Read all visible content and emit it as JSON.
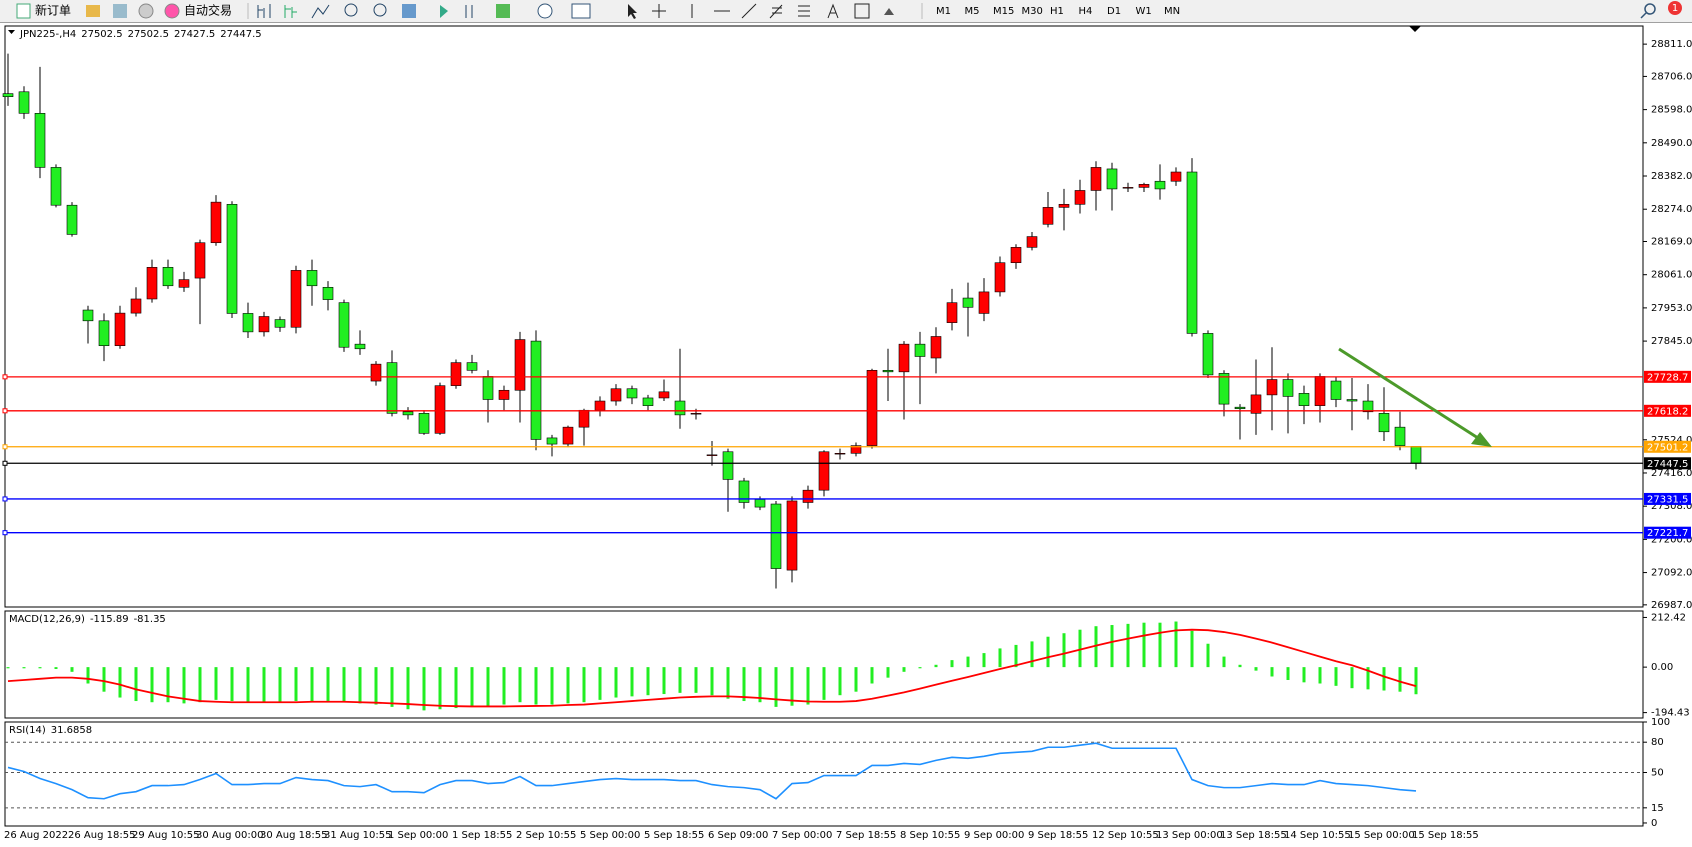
{
  "toolbar": {
    "new_order": "新订单",
    "auto_trading": "自动交易",
    "timeframes": [
      "M1",
      "M5",
      "M15",
      "M30",
      "H1",
      "H4",
      "D1",
      "W1",
      "MN"
    ],
    "alerts": "1"
  },
  "chart_data": [
    {
      "type": "candlestick",
      "title": "JPN225-,H4",
      "categories": [
        "26 Aug 2022",
        null,
        null,
        null,
        "26 Aug 18:55",
        null,
        null,
        null,
        "29 Aug 10:55",
        null,
        null,
        null,
        "30 Aug 00:00",
        null,
        null,
        null,
        "30 Aug 18:55",
        null,
        null,
        null,
        "31 Aug 10:55",
        null,
        null,
        null,
        "1 Sep 00:00",
        null,
        null,
        null,
        "1 Sep 18:55",
        null,
        null,
        null,
        "2 Sep 10:55",
        null,
        null,
        null,
        "5 Sep 00:00",
        null,
        null,
        null,
        "5 Sep 18:55",
        null,
        null,
        null,
        "6 Sep 09:00",
        null,
        null,
        null,
        "7 Sep 00:00",
        null,
        null,
        null,
        "7 Sep 18:55",
        null,
        null,
        null,
        "8 Sep 10:55",
        null,
        null,
        null,
        "9 Sep 00:00",
        null,
        null,
        null,
        "9 Sep 18:55",
        null,
        null,
        null,
        "12 Sep 10:55",
        null,
        null,
        null,
        "13 Sep 00:00",
        null,
        null,
        null,
        "13 Sep 18:55",
        null,
        null,
        null,
        "14 Sep 10:55",
        null,
        null,
        null,
        "15 Sep 00:00",
        null,
        null,
        null,
        "15 Sep 18:55"
      ],
      "open": [
        28650,
        28656,
        28586,
        28410,
        28287,
        27946,
        27911,
        27830,
        27936,
        27982,
        28085,
        28020,
        28050,
        28165,
        28290,
        27935,
        27875,
        27915,
        27890,
        28075,
        28020,
        27970,
        27835,
        27715,
        27775,
        27615,
        27610,
        27545,
        27700,
        27775,
        27730,
        27655,
        27685,
        27845,
        27530,
        27510,
        27565,
        27620,
        27650,
        27690,
        27660,
        27660,
        27650,
        27610,
        27475,
        27485,
        27390,
        27330,
        27315,
        27100,
        27320,
        27360,
        27480,
        27480,
        27505,
        27750,
        27745,
        27835,
        27790,
        27905,
        27985,
        27935,
        28005,
        28100,
        28150,
        28225,
        28280,
        28290,
        28335,
        28405,
        28345,
        28345,
        28365,
        28365,
        28395,
        27870,
        27740,
        27630,
        27610,
        27670,
        27720,
        27675,
        27635,
        27715,
        27655,
        27650,
        27610,
        27565,
        27502.5
      ],
      "high": [
        28780,
        28674,
        28737,
        28420,
        28297,
        27960,
        27935,
        27960,
        28020,
        28110,
        28110,
        28070,
        28175,
        28320,
        28300,
        27970,
        27940,
        27925,
        28090,
        28110,
        28040,
        27980,
        27880,
        27780,
        27815,
        27630,
        27620,
        27710,
        27785,
        27800,
        27750,
        27700,
        27875,
        27880,
        27540,
        27570,
        27625,
        27665,
        27705,
        27700,
        27670,
        27720,
        27820,
        27625,
        27520,
        27495,
        27400,
        27340,
        27325,
        27340,
        27375,
        27490,
        27495,
        27515,
        27755,
        27820,
        27845,
        27875,
        27890,
        28015,
        28035,
        28050,
        28120,
        28160,
        28200,
        28330,
        28340,
        28370,
        28430,
        28425,
        28360,
        28360,
        28420,
        28410,
        28440,
        27880,
        27750,
        27640,
        27785,
        27825,
        27740,
        27700,
        27740,
        27730,
        27725,
        27705,
        27695,
        27615,
        27502.5
      ],
      "low": [
        28610,
        28568,
        28375,
        28280,
        28185,
        27837,
        27780,
        27820,
        27925,
        27970,
        28015,
        28005,
        27900,
        28155,
        27920,
        27855,
        27860,
        27875,
        27870,
        27960,
        27945,
        27810,
        27800,
        27700,
        27600,
        27590,
        27540,
        27540,
        27690,
        27740,
        27580,
        27620,
        27580,
        27490,
        27470,
        27500,
        27505,
        27600,
        27635,
        27640,
        27620,
        27650,
        27560,
        27590,
        27440,
        27290,
        27300,
        27295,
        27040,
        27060,
        27300,
        27340,
        27460,
        27470,
        27495,
        27650,
        27590,
        27640,
        27740,
        27880,
        27860,
        27910,
        27990,
        28080,
        28140,
        28215,
        28205,
        28260,
        28270,
        28270,
        28330,
        28330,
        28305,
        28350,
        27860,
        27725,
        27600,
        27525,
        27540,
        27555,
        27545,
        27575,
        27580,
        27630,
        27555,
        27590,
        27520,
        27490,
        27427.5
      ],
      "close": [
        28640,
        28586,
        28410,
        28287,
        28192,
        27911,
        27830,
        27936,
        27982,
        28085,
        28025,
        28045,
        28165,
        28297,
        27935,
        27875,
        27925,
        27890,
        28075,
        28025,
        27980,
        27825,
        27820,
        27770,
        27610,
        27605,
        27545,
        27700,
        27775,
        27750,
        27655,
        27685,
        27850,
        27525,
        27510,
        27565,
        27620,
        27650,
        27690,
        27660,
        27635,
        27680,
        27605,
        27610,
        27475,
        27395,
        27320,
        27305,
        27105,
        27325,
        27360,
        27485,
        27480,
        27505,
        27750,
        27745,
        27835,
        27795,
        27860,
        27970,
        27955,
        28005,
        28100,
        28150,
        28185,
        28280,
        28290,
        28335,
        28410,
        28340,
        28345,
        28355,
        28340,
        28395,
        27870,
        27735,
        27640,
        27625,
        27670,
        27720,
        27665,
        27635,
        27730,
        27655,
        27650,
        27615,
        27550,
        27505,
        27447.5
      ],
      "up_color": "#ff0000",
      "down_color": "#22ee22",
      "hlines": [
        {
          "value": 27728.7,
          "color": "#ff0000"
        },
        {
          "value": 27618.2,
          "color": "#ff0000"
        },
        {
          "value": 27501.2,
          "color": "#ffa500"
        },
        {
          "value": 27331.5,
          "color": "#0000ff"
        },
        {
          "value": 27221.7,
          "color": "#0000ff"
        }
      ],
      "ylim": [
        26980,
        28870
      ],
      "yticks": [
        {
          "value": 28811,
          "label": "28811.0"
        },
        {
          "value": 28706,
          "label": "28706.0"
        },
        {
          "value": 28598,
          "label": "28598.0"
        },
        {
          "value": 28490,
          "label": "28490.0"
        },
        {
          "value": 28382,
          "label": "28382.0"
        },
        {
          "value": 28274,
          "label": "28274.0"
        },
        {
          "value": 28169,
          "label": "28169.0"
        },
        {
          "value": 28061,
          "label": "28061.0"
        },
        {
          "value": 27953,
          "label": "27953.0"
        },
        {
          "value": 27845,
          "label": "27845.0"
        },
        {
          "value": 27524,
          "label": "27524.0"
        },
        {
          "value": 27416,
          "label": "27416.0"
        },
        {
          "value": 27308,
          "label": "27308.0"
        },
        {
          "value": 27200,
          "label": "27200.0"
        },
        {
          "value": 27092,
          "label": "27092.0"
        },
        {
          "value": 26987,
          "label": "26987.0"
        }
      ]
    },
    {
      "type": "macd",
      "title": "MACD(12,26,9)",
      "series": [
        {
          "color": "#22ee22",
          "values": [
            -5,
            -5,
            -5,
            -8,
            -20,
            -70,
            -105,
            -130,
            -145,
            -150,
            -150,
            -155,
            -150,
            -140,
            -145,
            -150,
            -150,
            -150,
            -145,
            -145,
            -145,
            -150,
            -155,
            -160,
            -170,
            -180,
            -185,
            -180,
            -175,
            -170,
            -165,
            -160,
            -150,
            -160,
            -160,
            -155,
            -150,
            -140,
            -130,
            -125,
            -120,
            -115,
            -110,
            -110,
            -120,
            -135,
            -145,
            -150,
            -170,
            -165,
            -160,
            -140,
            -120,
            -105,
            -70,
            -45,
            -20,
            -5,
            10,
            30,
            45,
            60,
            80,
            95,
            110,
            130,
            145,
            160,
            175,
            180,
            185,
            190,
            190,
            195,
            155,
            100,
            45,
            10,
            -15,
            -40,
            -55,
            -65,
            -70,
            -80,
            -90,
            -95,
            -100,
            -105,
            -115.89
          ]
        },
        {
          "color": "#ff0000",
          "values": [
            -60,
            -55,
            -50,
            -45,
            -45,
            -50,
            -60,
            -75,
            -95,
            -110,
            -125,
            -135,
            -145,
            -148,
            -150,
            -150,
            -150,
            -150,
            -150,
            -148,
            -148,
            -148,
            -150,
            -152,
            -155,
            -158,
            -162,
            -165,
            -167,
            -168,
            -168,
            -168,
            -167,
            -166,
            -165,
            -162,
            -160,
            -155,
            -150,
            -145,
            -140,
            -135,
            -130,
            -127,
            -125,
            -125,
            -128,
            -132,
            -138,
            -143,
            -147,
            -148,
            -148,
            -145,
            -135,
            -122,
            -108,
            -92,
            -75,
            -58,
            -42,
            -25,
            -8,
            8,
            25,
            42,
            58,
            75,
            92,
            108,
            122,
            135,
            147,
            157,
            160,
            158,
            150,
            138,
            122,
            105,
            85,
            65,
            45,
            25,
            8,
            -15,
            -40,
            -62,
            -81.35
          ]
        }
      ],
      "ylim": [
        -217.5,
        240
      ],
      "yticks": [
        {
          "value": 212.42,
          "label": "212.42"
        },
        {
          "value": 0,
          "label": "0.00"
        },
        {
          "value": -194.43,
          "label": "-194.43"
        }
      ]
    },
    {
      "type": "line",
      "title": "RSI(14)",
      "series": [
        {
          "color": "#1e90ff",
          "values": [
            55,
            51,
            44,
            39,
            33,
            25,
            24,
            29,
            31,
            37,
            37,
            38,
            43,
            49,
            38,
            38,
            39,
            39,
            45,
            43,
            42,
            37,
            36,
            38,
            31,
            31,
            30,
            38,
            42,
            42,
            39,
            40,
            46,
            37,
            37,
            39,
            41,
            43,
            44,
            43,
            43,
            43,
            42,
            42,
            38,
            36,
            35,
            33,
            24,
            39,
            40,
            47,
            47,
            47,
            57,
            57,
            59,
            58,
            62,
            65,
            64,
            66,
            69,
            70,
            71,
            75,
            75,
            77,
            79,
            74,
            74,
            74,
            74,
            74,
            43,
            37,
            35,
            35,
            37,
            39,
            38,
            38,
            42,
            39,
            38,
            37,
            35,
            33,
            31.6858
          ]
        }
      ],
      "levels": [
        80,
        50,
        15
      ],
      "ylim": [
        -3,
        100
      ],
      "yticks": [
        100,
        80,
        50,
        15,
        0
      ]
    }
  ]
}
